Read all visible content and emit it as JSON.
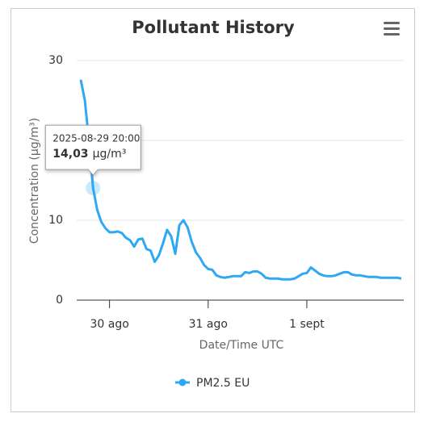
{
  "chart_data": {
    "type": "line",
    "title": "Pollutant History",
    "y_label": "Concentration (µg/m³)",
    "x_label": "Date/Time UTC",
    "unit": "µg/m³",
    "x": [
      "2025-08-29 17:00",
      "2025-08-29 18:00",
      "2025-08-29 19:00",
      "2025-08-29 20:00",
      "2025-08-29 21:00",
      "2025-08-29 22:00",
      "2025-08-29 23:00",
      "2025-08-30 00:00",
      "2025-08-30 01:00",
      "2025-08-30 02:00",
      "2025-08-30 03:00",
      "2025-08-30 04:00",
      "2025-08-30 05:00",
      "2025-08-30 06:00",
      "2025-08-30 07:00",
      "2025-08-30 08:00",
      "2025-08-30 09:00",
      "2025-08-30 10:00",
      "2025-08-30 11:00",
      "2025-08-30 12:00",
      "2025-08-30 13:00",
      "2025-08-30 14:00",
      "2025-08-30 15:00",
      "2025-08-30 16:00",
      "2025-08-30 17:00",
      "2025-08-30 18:00",
      "2025-08-30 19:00",
      "2025-08-30 20:00",
      "2025-08-30 21:00",
      "2025-08-30 22:00",
      "2025-08-30 23:00",
      "2025-08-31 00:00",
      "2025-08-31 01:00",
      "2025-08-31 02:00",
      "2025-08-31 03:00",
      "2025-08-31 04:00",
      "2025-08-31 05:00",
      "2025-08-31 06:00",
      "2025-08-31 07:00",
      "2025-08-31 08:00",
      "2025-08-31 09:00",
      "2025-08-31 10:00",
      "2025-08-31 11:00",
      "2025-08-31 12:00",
      "2025-08-31 13:00",
      "2025-08-31 14:00",
      "2025-08-31 15:00",
      "2025-08-31 16:00",
      "2025-08-31 17:00",
      "2025-08-31 18:00",
      "2025-08-31 19:00",
      "2025-08-31 20:00",
      "2025-08-31 21:00",
      "2025-08-31 22:00",
      "2025-08-31 23:00",
      "2025-09-01 00:00",
      "2025-09-01 01:00",
      "2025-09-01 02:00",
      "2025-09-01 03:00",
      "2025-09-01 04:00",
      "2025-09-01 05:00",
      "2025-09-01 06:00",
      "2025-09-01 07:00",
      "2025-09-01 08:00",
      "2025-09-01 09:00",
      "2025-09-01 10:00",
      "2025-09-01 11:00",
      "2025-09-01 12:00",
      "2025-09-01 13:00",
      "2025-09-01 14:00",
      "2025-09-01 15:00",
      "2025-09-01 16:00",
      "2025-09-01 17:00",
      "2025-09-01 18:00",
      "2025-09-01 19:00",
      "2025-09-01 20:00",
      "2025-09-01 21:00",
      "2025-09-01 22:00",
      "2025-09-01 23:00"
    ],
    "series": [
      {
        "name": "PM2.5 EU",
        "color": "#2ea8f5",
        "values": [
          27.6,
          25.0,
          19.9,
          14.03,
          11.3,
          9.8,
          9.0,
          8.5,
          8.5,
          8.6,
          8.4,
          7.8,
          7.5,
          6.7,
          7.6,
          7.7,
          6.4,
          6.2,
          4.8,
          5.6,
          7.1,
          8.8,
          8.0,
          5.8,
          9.4,
          10.0,
          9.1,
          7.3,
          6.0,
          5.3,
          4.4,
          3.9,
          3.8,
          3.1,
          2.9,
          2.8,
          2.9,
          3.0,
          3.0,
          3.0,
          3.5,
          3.4,
          3.6,
          3.6,
          3.3,
          2.8,
          2.7,
          2.7,
          2.7,
          2.6,
          2.6,
          2.6,
          2.7,
          3.0,
          3.3,
          3.4,
          4.1,
          3.7,
          3.3,
          3.1,
          3.0,
          3.0,
          3.1,
          3.3,
          3.5,
          3.5,
          3.2,
          3.1,
          3.1,
          3.0,
          2.9,
          2.9,
          2.9,
          2.8,
          2.8,
          2.8,
          2.8,
          2.8,
          2.7
        ],
        "value_labels": [
          null,
          null,
          null,
          "14,03"
        ]
      }
    ],
    "xlim": [
      "2025-08-29 17:00",
      "2025-09-01 23:00"
    ],
    "xticks": [
      {
        "value": "2025-08-30 00:00",
        "label": "30 ago"
      },
      {
        "value": "2025-08-31 00:00",
        "label": "31 ago"
      },
      {
        "value": "2025-09-01 00:00",
        "label": "1 sept"
      }
    ],
    "ylim": [
      0,
      30
    ],
    "yticks": [
      0,
      10,
      20,
      30
    ],
    "grid": true,
    "legend": "bottom"
  }
}
